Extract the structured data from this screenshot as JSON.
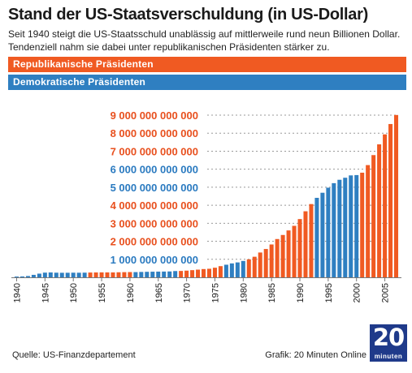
{
  "header": {
    "title": "Stand der US-Staatsverschuldung (in US-Dollar)",
    "subtitle": "Seit 1940 steigt die US-Staatsschuld unablässig auf mittlerweile rund neun Billionen Dollar. Tendenziell nahm sie dabei unter republikanischen Präsidenten stärker zu."
  },
  "legend": {
    "republican_label": "Republikanische Präsidenten",
    "democratic_label": "Demokratische Präsidenten"
  },
  "footer": {
    "source": "Quelle: US-Finanzdepartement",
    "credit": "Grafik: 20 Minuten Online"
  },
  "logo": {
    "number": "20",
    "word": "minuten"
  },
  "colors": {
    "republican": "#f05a22",
    "democratic": "#2f7fc1",
    "rep_tick_text": "#e8501e",
    "dem_tick_text": "#2a7ac0",
    "grid": "#999999"
  },
  "chart_data": {
    "type": "bar",
    "y_unit": "US-Dollar",
    "ylim": [
      0,
      9000000000000
    ],
    "grid": true,
    "y_ticks": [
      {
        "value": 1000000000000,
        "label": "1 000 000 000 000",
        "party": "D"
      },
      {
        "value": 2000000000000,
        "label": "2 000 000 000 000",
        "party": "R"
      },
      {
        "value": 3000000000000,
        "label": "3 000 000 000 000",
        "party": "R"
      },
      {
        "value": 4000000000000,
        "label": "4 000 000 000 000",
        "party": "R"
      },
      {
        "value": 5000000000000,
        "label": "5 000 000 000 000",
        "party": "D"
      },
      {
        "value": 6000000000000,
        "label": "6 000 000 000 000",
        "party": "D"
      },
      {
        "value": 7000000000000,
        "label": "7 000 000 000 000",
        "party": "R"
      },
      {
        "value": 8000000000000,
        "label": "8 000 000 000 000",
        "party": "R"
      },
      {
        "value": 9000000000000,
        "label": "9 000 000 000 000",
        "party": "R"
      }
    ],
    "x_ticks": [
      "1940",
      "1945",
      "1950",
      "1955",
      "1960",
      "1965",
      "1970",
      "1975",
      "1980",
      "1985",
      "1990",
      "1995",
      "2000",
      "2005"
    ],
    "categories": [
      1940,
      1941,
      1942,
      1943,
      1944,
      1945,
      1946,
      1947,
      1948,
      1949,
      1950,
      1951,
      1952,
      1953,
      1954,
      1955,
      1956,
      1957,
      1958,
      1959,
      1960,
      1961,
      1962,
      1963,
      1964,
      1965,
      1966,
      1967,
      1968,
      1969,
      1970,
      1971,
      1972,
      1973,
      1974,
      1975,
      1976,
      1977,
      1978,
      1979,
      1980,
      1981,
      1982,
      1983,
      1984,
      1985,
      1986,
      1987,
      1988,
      1989,
      1990,
      1991,
      1992,
      1993,
      1994,
      1995,
      1996,
      1997,
      1998,
      1999,
      2000,
      2001,
      2002,
      2003,
      2004,
      2005,
      2006,
      2007
    ],
    "values": [
      43000000000,
      49000000000,
      72000000000,
      137000000000,
      204000000000,
      260000000000,
      271000000000,
      257000000000,
      252000000000,
      253000000000,
      257000000000,
      255000000000,
      259000000000,
      266000000000,
      271000000000,
      274000000000,
      273000000000,
      272000000000,
      280000000000,
      287000000000,
      291000000000,
      289000000000,
      298000000000,
      306000000000,
      312000000000,
      317000000000,
      320000000000,
      326000000000,
      348000000000,
      354000000000,
      371000000000,
      398000000000,
      427000000000,
      458000000000,
      475000000000,
      533000000000,
      620000000000,
      699000000000,
      772000000000,
      827000000000,
      908000000000,
      998000000000,
      1142000000000,
      1377000000000,
      1572000000000,
      1823000000000,
      2125000000000,
      2350000000000,
      2602000000000,
      2857000000000,
      3233000000000,
      3665000000000,
      4065000000000,
      4411000000000,
      4693000000000,
      4974000000000,
      5225000000000,
      5413000000000,
      5526000000000,
      5656000000000,
      5674000000000,
      5807000000000,
      6228000000000,
      6783000000000,
      7379000000000,
      7933000000000,
      8507000000000,
      9008000000000
    ],
    "party": [
      "D",
      "D",
      "D",
      "D",
      "D",
      "D",
      "D",
      "D",
      "D",
      "D",
      "D",
      "D",
      "D",
      "R",
      "R",
      "R",
      "R",
      "R",
      "R",
      "R",
      "R",
      "D",
      "D",
      "D",
      "D",
      "D",
      "D",
      "D",
      "D",
      "R",
      "R",
      "R",
      "R",
      "R",
      "R",
      "R",
      "R",
      "D",
      "D",
      "D",
      "D",
      "R",
      "R",
      "R",
      "R",
      "R",
      "R",
      "R",
      "R",
      "R",
      "R",
      "R",
      "R",
      "D",
      "D",
      "D",
      "D",
      "D",
      "D",
      "D",
      "D",
      "R",
      "R",
      "R",
      "R",
      "R",
      "R",
      "R"
    ]
  }
}
